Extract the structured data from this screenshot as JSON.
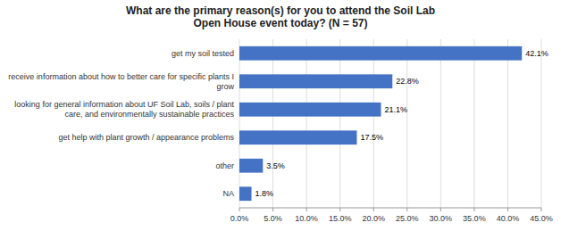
{
  "chart_data": {
    "type": "bar",
    "orientation": "horizontal",
    "title": "What are the primary reason(s) for you to attend the Soil Lab\nOpen House event today? (N = 57)",
    "categories": [
      "NA",
      "other",
      "get help with plant growth / appearance problems",
      "looking for general information about UF Soil Lab, soils / plant\ncare, and environmentally sustainable practices",
      "receive information about how to better care for specific plants I\ngrow",
      "get my soil tested"
    ],
    "values": [
      1.8,
      3.5,
      17.5,
      21.1,
      22.8,
      42.1
    ],
    "value_labels": [
      "1.8%",
      "3.5%",
      "17.5%",
      "21.1%",
      "22.8%",
      "42.1%"
    ],
    "data_labels": true,
    "color": "#4472C4",
    "xlim": [
      0,
      45
    ],
    "xticks": [
      {
        "value": 0,
        "label": "0.0%"
      },
      {
        "value": 5,
        "label": "5.0%"
      },
      {
        "value": 10,
        "label": "10.0%"
      },
      {
        "value": 15,
        "label": "15.0%"
      },
      {
        "value": 20,
        "label": "20.0%"
      },
      {
        "value": 25,
        "label": "25.0%"
      },
      {
        "value": 30,
        "label": "30.0%"
      },
      {
        "value": 35,
        "label": "35.0%"
      },
      {
        "value": 40,
        "label": "40.0%"
      },
      {
        "value": 45,
        "label": "45.0%"
      }
    ],
    "grid": true
  }
}
